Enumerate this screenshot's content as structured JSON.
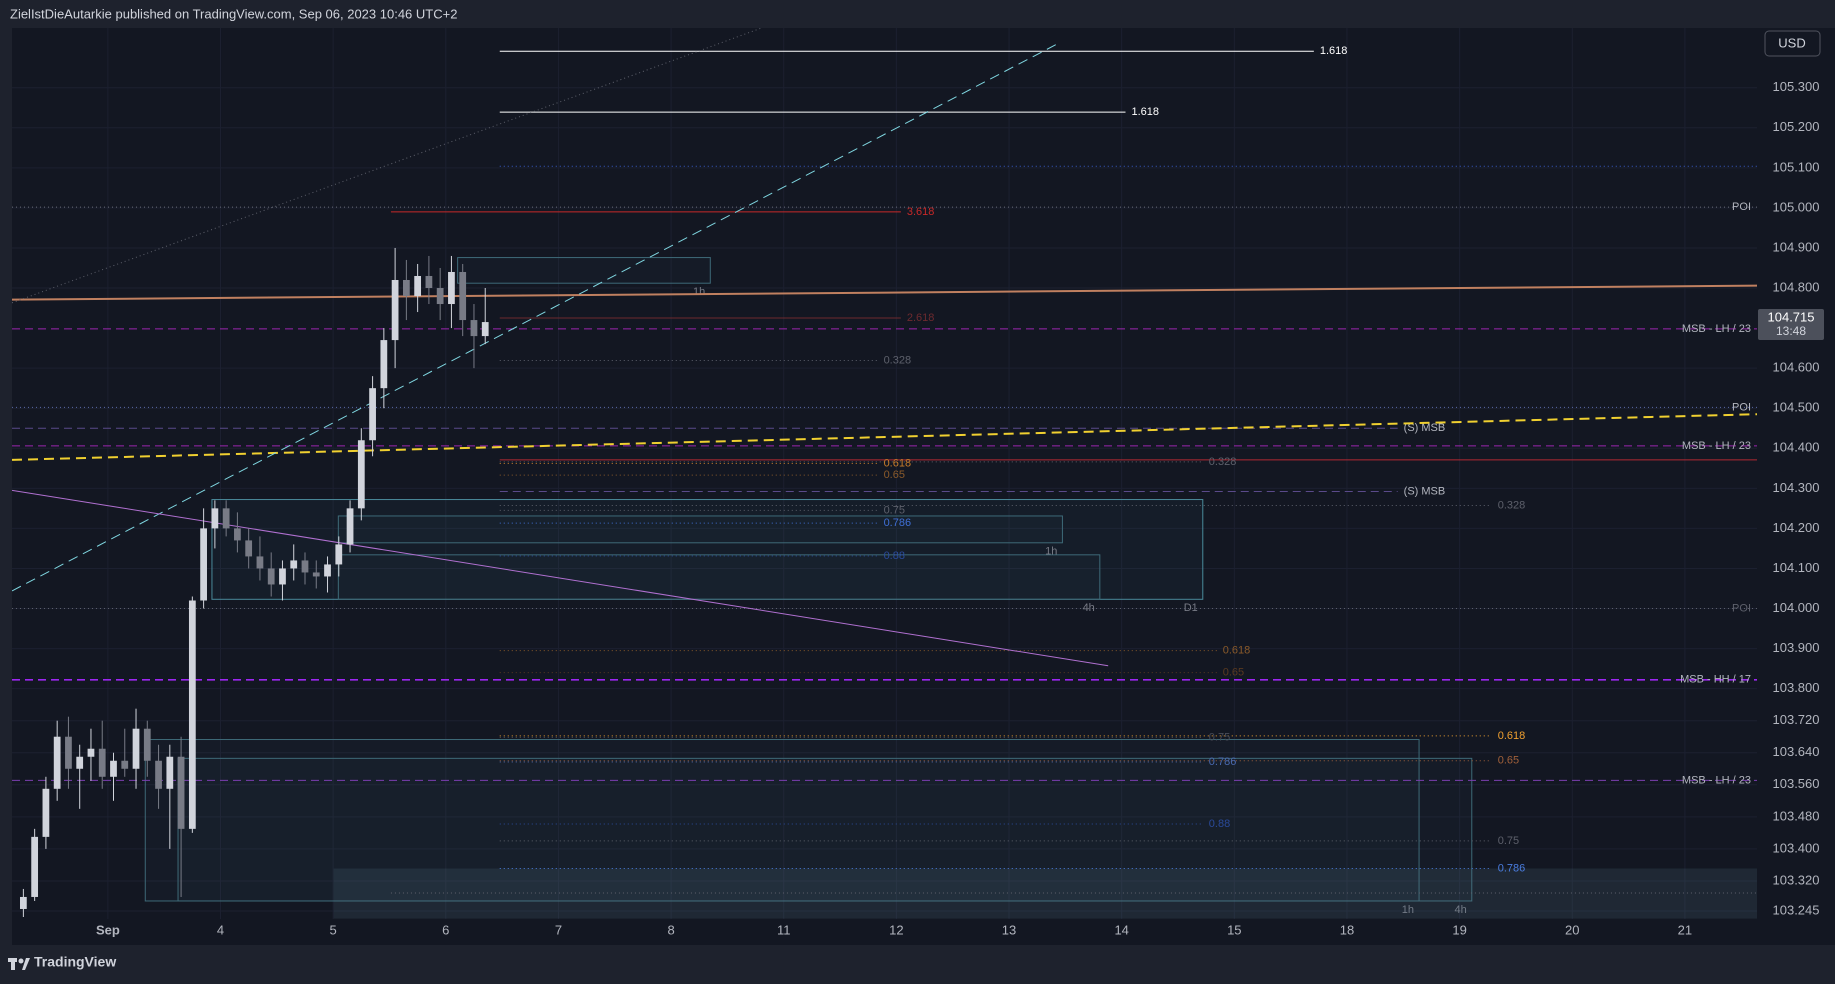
{
  "header": "ZielIstDieAutarkie published on TradingView.com, Sep 06, 2023 10:46 UTC+2",
  "currency": "USD",
  "footer": "TradingView",
  "chart_data": {
    "type": "candlestick",
    "up_color": "#d1d4dc",
    "down_color": "#787b86",
    "grid": true,
    "xlim": [
      -0.851,
      14.64
    ],
    "ylim": [
      103.225,
      105.449
    ],
    "xticks": [
      {
        "value": 0,
        "label": "Sep"
      },
      {
        "value": 1,
        "label": "4"
      },
      {
        "value": 2,
        "label": "5"
      },
      {
        "value": 3,
        "label": "6"
      },
      {
        "value": 4,
        "label": "7"
      },
      {
        "value": 5,
        "label": "8"
      },
      {
        "value": 6,
        "label": "11"
      },
      {
        "value": 7,
        "label": "12"
      },
      {
        "value": 8,
        "label": "13"
      },
      {
        "value": 9,
        "label": "14"
      },
      {
        "value": 10,
        "label": "15"
      },
      {
        "value": 11,
        "label": "18"
      },
      {
        "value": 12,
        "label": "19"
      },
      {
        "value": 13,
        "label": "20"
      },
      {
        "value": 14,
        "label": "21"
      }
    ],
    "yticks": [
      {
        "value": 103.245,
        "label": "103.245"
      },
      {
        "value": 103.32,
        "label": "103.320"
      },
      {
        "value": 103.4,
        "label": "103.400"
      },
      {
        "value": 103.48,
        "label": "103.480"
      },
      {
        "value": 103.56,
        "label": "103.560"
      },
      {
        "value": 103.64,
        "label": "103.640"
      },
      {
        "value": 103.72,
        "label": "103.720"
      },
      {
        "value": 103.8,
        "label": "103.800"
      },
      {
        "value": 103.9,
        "label": "103.900"
      },
      {
        "value": 104,
        "label": "104.000"
      },
      {
        "value": 104.1,
        "label": "104.100"
      },
      {
        "value": 104.2,
        "label": "104.200"
      },
      {
        "value": 104.3,
        "label": "104.300"
      },
      {
        "value": 104.4,
        "label": "104.400"
      },
      {
        "value": 104.5,
        "label": "104.500"
      },
      {
        "value": 104.6,
        "label": "104.600"
      },
      {
        "value": 104.8,
        "label": "104.800"
      },
      {
        "value": 104.9,
        "label": "104.900"
      },
      {
        "value": 105,
        "label": "105.000"
      },
      {
        "value": 105.1,
        "label": "105.100"
      },
      {
        "value": 105.2,
        "label": "105.200"
      },
      {
        "value": 105.3,
        "label": "105.300"
      }
    ],
    "candles": {
      "x": [
        -0.75,
        -0.65,
        -0.55,
        -0.45,
        -0.35,
        -0.25,
        -0.15,
        -0.05,
        0.05,
        0.15,
        0.25,
        0.35,
        0.45,
        0.55,
        0.65,
        0.75,
        0.85,
        0.95,
        1.05,
        1.15,
        1.25,
        1.35,
        1.45,
        1.55,
        1.65,
        1.75,
        1.85,
        1.95,
        2.05,
        2.15,
        2.25,
        2.35,
        2.45,
        2.55,
        2.65,
        2.75,
        2.85,
        2.95,
        3.05,
        3.15,
        3.25,
        3.35
      ],
      "open": [
        103.25,
        103.28,
        103.43,
        103.55,
        103.68,
        103.6,
        103.63,
        103.65,
        103.58,
        103.62,
        103.6,
        103.7,
        103.62,
        103.55,
        103.63,
        103.45,
        104.02,
        104.2,
        104.25,
        104.2,
        104.17,
        104.13,
        104.1,
        104.06,
        104.1,
        104.12,
        104.09,
        104.08,
        104.11,
        104.16,
        104.25,
        104.42,
        104.55,
        104.67,
        104.82,
        104.78,
        104.83,
        104.8,
        104.76,
        104.84,
        104.72,
        104.68
      ],
      "high": [
        103.3,
        103.45,
        103.58,
        103.72,
        103.73,
        103.66,
        103.7,
        103.72,
        103.64,
        103.7,
        103.75,
        103.72,
        103.66,
        103.66,
        103.68,
        104.03,
        104.25,
        104.27,
        104.27,
        104.24,
        104.2,
        104.18,
        104.14,
        104.12,
        104.16,
        104.14,
        104.12,
        104.13,
        104.18,
        104.27,
        104.45,
        104.58,
        104.7,
        104.9,
        104.87,
        104.86,
        104.88,
        104.85,
        104.88,
        104.86,
        104.76,
        104.8
      ],
      "low": [
        103.23,
        103.27,
        103.4,
        103.52,
        103.55,
        103.5,
        103.57,
        103.55,
        103.52,
        103.58,
        103.55,
        103.58,
        103.5,
        103.4,
        103.28,
        103.44,
        104.0,
        104.15,
        104.18,
        104.14,
        104.1,
        104.07,
        104.03,
        104.02,
        104.07,
        104.06,
        104.05,
        104.04,
        104.08,
        104.14,
        104.22,
        104.38,
        104.5,
        104.6,
        104.72,
        104.74,
        104.76,
        104.72,
        104.7,
        104.68,
        104.6,
        104.66
      ],
      "close": [
        103.28,
        103.43,
        103.55,
        103.68,
        103.6,
        103.63,
        103.65,
        103.58,
        103.62,
        103.6,
        103.7,
        103.62,
        103.55,
        103.63,
        103.45,
        104.02,
        104.2,
        104.25,
        104.2,
        104.17,
        104.13,
        104.1,
        104.06,
        104.1,
        104.12,
        104.09,
        104.08,
        104.11,
        104.16,
        104.25,
        104.42,
        104.55,
        104.67,
        104.82,
        104.78,
        104.83,
        104.8,
        104.76,
        104.84,
        104.72,
        104.68,
        104.715
      ]
    },
    "last_price": {
      "value": 104.715,
      "countdown": "13:48",
      "color": "#4c505b"
    },
    "levels": [
      {
        "value": 105.391,
        "x": [
          3.479,
          10.706
        ],
        "label": "1.618",
        "color": "#ffffff",
        "dash": "solid"
      },
      {
        "value": 105.239,
        "x": [
          3.479,
          9.034
        ],
        "label": "1.618",
        "color": "#ffffff",
        "dash": "solid"
      },
      {
        "value": 105.104,
        "x": [
          3.479,
          14.64
        ],
        "color": "#3a5fcd",
        "dash": "dotted"
      },
      {
        "value": 105.002,
        "x": [
          -0.851,
          14.64
        ],
        "label": "POI",
        "color": "#6a6d78",
        "dash": "dotted"
      },
      {
        "value": 104.99,
        "x": [
          2.513,
          7.04
        ],
        "label": "3.618",
        "color": "#c62828",
        "dash": "solid"
      },
      {
        "value": 104.725,
        "x": [
          3.479,
          7.04
        ],
        "label": "2.618",
        "color": "#6e2a2f",
        "dash": "solid"
      },
      {
        "value": 104.698,
        "x": [
          -0.851,
          14.64
        ],
        "label": "MSB - LH / 23",
        "color": "#9c27b0",
        "dash": "dashed"
      },
      {
        "value": 104.619,
        "x": [
          3.479,
          6.833
        ],
        "label": "0.328",
        "color": "#5d606b",
        "dash": "dotted"
      },
      {
        "value": 104.502,
        "x": [
          -0.851,
          14.64
        ],
        "label": "POI",
        "color": "#5a6aa8",
        "dash": "dotted"
      },
      {
        "value": 104.45,
        "x": [
          -0.851,
          11.45
        ],
        "label": "(S) MSB",
        "color": "#5a4a8a",
        "dash": "dashed"
      },
      {
        "value": 104.406,
        "x": [
          -0.851,
          14.64
        ],
        "label": "MSB - LH / 23",
        "color": "#9c27b0",
        "dash": "dashed"
      },
      {
        "value": 104.371,
        "x": [
          3.479,
          14.64
        ],
        "color": "#b22833",
        "dash": "solid"
      },
      {
        "value": 104.366,
        "x": [
          3.479,
          9.72
        ],
        "label": "0.328",
        "color": "#5d606b",
        "dash": "dotted"
      },
      {
        "value": 104.362,
        "x": [
          3.479,
          6.833
        ],
        "label": "0.618",
        "color": "#c77c2a",
        "dash": "dotted"
      },
      {
        "value": 104.333,
        "x": [
          3.479,
          6.833
        ],
        "label": "0.65",
        "color": "#8a5a2a",
        "dash": "dotted"
      },
      {
        "value": 104.292,
        "x": [
          3.479,
          11.45
        ],
        "label": "(S) MSB",
        "color": "#5a4a8a",
        "dash": "dashed"
      },
      {
        "value": 104.257,
        "x": [
          3.479,
          12.285
        ],
        "label": "0.328",
        "color": "#5d606b",
        "dash": "dotted"
      },
      {
        "value": 104.245,
        "x": [
          3.479,
          6.833
        ],
        "label": "0.75",
        "color": "#5d606b",
        "dash": "dotted"
      },
      {
        "value": 104.213,
        "x": [
          3.479,
          6.833
        ],
        "label": "0.786",
        "color": "#3f6fd6",
        "dash": "dotted"
      },
      {
        "value": 104.131,
        "x": [
          3.479,
          6.833
        ],
        "label": "0.88",
        "color": "#2a4a9a",
        "dash": "dotted"
      },
      {
        "value": 104.0,
        "x": [
          -0.851,
          14.64
        ],
        "label": "POI",
        "color": "#5d606b",
        "dash": "dotted"
      },
      {
        "value": 103.895,
        "x": [
          3.479,
          9.844
        ],
        "label": "0.618",
        "color": "#8a5a2a",
        "dash": "dotted"
      },
      {
        "value": 103.84,
        "x": [
          3.479,
          9.844
        ],
        "label": "0.65",
        "color": "#5a3a20",
        "dash": "dotted"
      },
      {
        "value": 103.822,
        "x": [
          -0.851,
          14.64
        ],
        "label": "MSB - HH / 17",
        "color": "#9c27f0",
        "dash": "dashed"
      },
      {
        "value": 103.682,
        "x": [
          3.479,
          12.285
        ],
        "label": "0.618",
        "color": "#f0a030",
        "dash": "dotted"
      },
      {
        "value": 103.678,
        "x": [
          3.479,
          9.72
        ],
        "label": "0.75",
        "color": "#4a4d58",
        "dash": "dotted"
      },
      {
        "value": 103.62,
        "x": [
          3.479,
          12.285
        ],
        "label": "0.65",
        "color": "#a0603a",
        "dash": "dotted"
      },
      {
        "value": 103.617,
        "x": [
          3.479,
          9.72
        ],
        "label": "0.786",
        "color": "#4a6ab0",
        "dash": "dotted"
      },
      {
        "value": 103.571,
        "x": [
          -0.851,
          14.64
        ],
        "label": "MSB - LH / 23",
        "color": "#7b3fb0",
        "dash": "dashed"
      },
      {
        "value": 103.462,
        "x": [
          3.479,
          9.72
        ],
        "label": "0.88",
        "color": "#2a4a9a",
        "dash": "dotted"
      },
      {
        "value": 103.42,
        "x": [
          3.479,
          12.285
        ],
        "label": "0.75",
        "color": "#5d606b",
        "dash": "dotted"
      },
      {
        "value": 103.351,
        "x": [
          3.479,
          12.285
        ],
        "label": "0.786",
        "color": "#4a7de0",
        "dash": "dotted"
      },
      {
        "value": 103.29,
        "x": [
          2.513,
          14.64
        ],
        "color": "#5d606b",
        "dash": "dotted"
      }
    ],
    "trendlines": [
      {
        "x": [
          -0.851,
          14.64
        ],
        "y": [
          104.771,
          104.806
        ],
        "color": "#c08060",
        "dash": "solid",
        "width": 2
      },
      {
        "x": [
          -0.851,
          14.64
        ],
        "y": [
          104.371,
          104.485
        ],
        "color": "#f0d030",
        "dash": "dashed",
        "width": 2
      },
      {
        "x": [
          -0.851,
          8.42
        ],
        "y": [
          104.044,
          105.408
        ],
        "color": "#7fd6e0",
        "dash": "dashed",
        "width": 1
      },
      {
        "x": [
          -0.851,
          8.88
        ],
        "y": [
          104.295,
          103.857
        ],
        "color": "#b070d0",
        "dash": "solid",
        "width": 1
      },
      {
        "x": [
          -0.851,
          6.2
        ],
        "y": [
          104.763,
          105.49
        ],
        "color": "#5d606b",
        "dash": "dotted",
        "width": 1
      }
    ],
    "boxes": [
      {
        "x": [
          0.924,
          9.72
        ],
        "y": [
          104.023,
          104.272
        ],
        "label": "D1",
        "color": "#4a8a9a"
      },
      {
        "x": [
          2.046,
          8.806
        ],
        "y": [
          104.023,
          104.134
        ],
        "label": "4h",
        "color": "#3e6a78"
      },
      {
        "x": [
          2.046,
          8.474
        ],
        "y": [
          104.164,
          104.231
        ],
        "label": "1h",
        "color": "#3e6a78"
      },
      {
        "x": [
          3.105,
          5.348
        ],
        "y": [
          104.812,
          104.876
        ],
        "label": "1h",
        "color": "#3e6a78"
      },
      {
        "x": [
          0.332,
          11.64
        ],
        "y": [
          103.27,
          103.673
        ],
        "label": "1h",
        "color": "#3e6a78"
      },
      {
        "x": [
          0.623,
          12.108
        ],
        "y": [
          103.27,
          103.626
        ],
        "label": "4h",
        "color": "#3e6a78"
      },
      {
        "x": [
          2.004,
          14.64
        ],
        "y": [
          103.226,
          103.351
        ],
        "color": "#5a7a88"
      }
    ]
  }
}
